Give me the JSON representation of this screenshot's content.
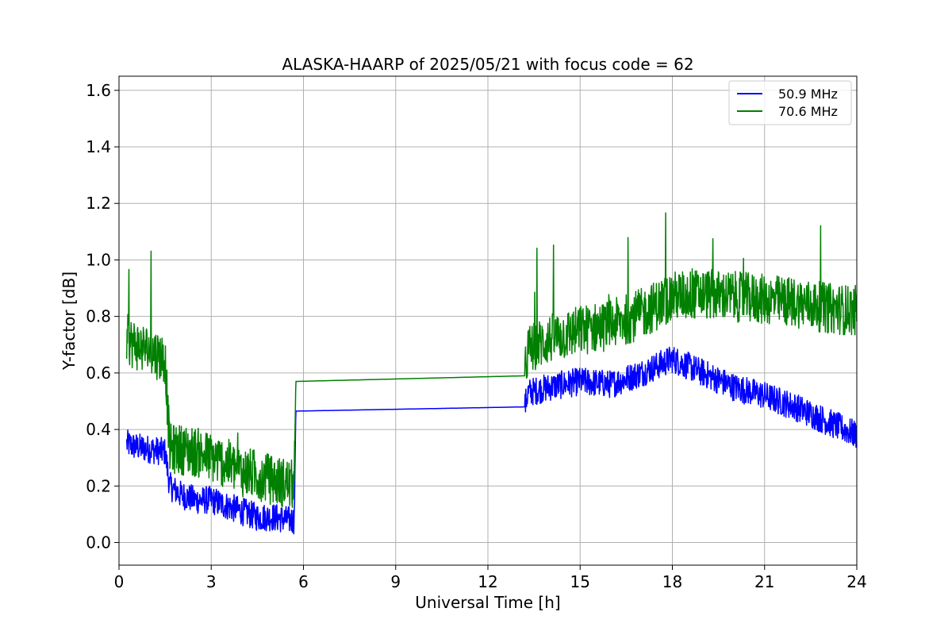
{
  "chart_data": {
    "type": "line",
    "title": "ALASKA-HAARP of 2025/05/21 with focus code = 62",
    "xlabel": "Universal Time [h]",
    "ylabel": "Y-factor [dB]",
    "xlim": [
      0,
      24
    ],
    "ylim": [
      -0.08,
      1.65
    ],
    "xticks": [
      0,
      3,
      6,
      9,
      12,
      15,
      18,
      21,
      24
    ],
    "yticks": [
      0.0,
      0.2,
      0.4,
      0.6,
      0.8,
      1.0,
      1.2,
      1.4,
      1.6
    ],
    "xtick_labels": [
      "0",
      "3",
      "6",
      "9",
      "12",
      "15",
      "18",
      "21",
      "24"
    ],
    "ytick_labels": [
      "0.0",
      "0.2",
      "0.4",
      "0.6",
      "0.8",
      "1.0",
      "1.2",
      "1.4",
      "1.6"
    ],
    "grid": true,
    "legend_position": "top-right",
    "series": [
      {
        "name": "50.9 MHz",
        "color": "#0000ff",
        "x": [
          0.25,
          0.5,
          1.0,
          1.5,
          1.65,
          2.0,
          2.5,
          3.0,
          3.5,
          4.0,
          4.5,
          5.0,
          5.5,
          5.7,
          5.75,
          13.2,
          13.3,
          14.0,
          15.0,
          16.0,
          17.0,
          18.0,
          19.0,
          20.0,
          21.0,
          22.0,
          23.0,
          24.0
        ],
        "values": [
          0.35,
          0.34,
          0.33,
          0.32,
          0.2,
          0.17,
          0.15,
          0.15,
          0.13,
          0.11,
          0.09,
          0.09,
          0.08,
          0.08,
          0.465,
          0.48,
          0.53,
          0.55,
          0.57,
          0.56,
          0.6,
          0.65,
          0.6,
          0.55,
          0.52,
          0.48,
          0.43,
          0.38
        ]
      },
      {
        "name": "70.6 MHz",
        "color": "#008000",
        "x": [
          0.25,
          0.5,
          1.0,
          1.5,
          1.65,
          2.0,
          2.5,
          3.0,
          3.5,
          4.0,
          4.5,
          5.0,
          5.5,
          5.7,
          5.75,
          13.2,
          13.3,
          14.0,
          15.0,
          16.0,
          17.0,
          18.0,
          19.0,
          20.0,
          21.0,
          22.0,
          23.0,
          24.0
        ],
        "values": [
          0.72,
          0.7,
          0.68,
          0.65,
          0.33,
          0.33,
          0.32,
          0.3,
          0.28,
          0.25,
          0.24,
          0.22,
          0.21,
          0.2,
          0.57,
          0.59,
          0.68,
          0.72,
          0.75,
          0.77,
          0.81,
          0.87,
          0.88,
          0.87,
          0.86,
          0.85,
          0.83,
          0.82
        ]
      }
    ]
  }
}
